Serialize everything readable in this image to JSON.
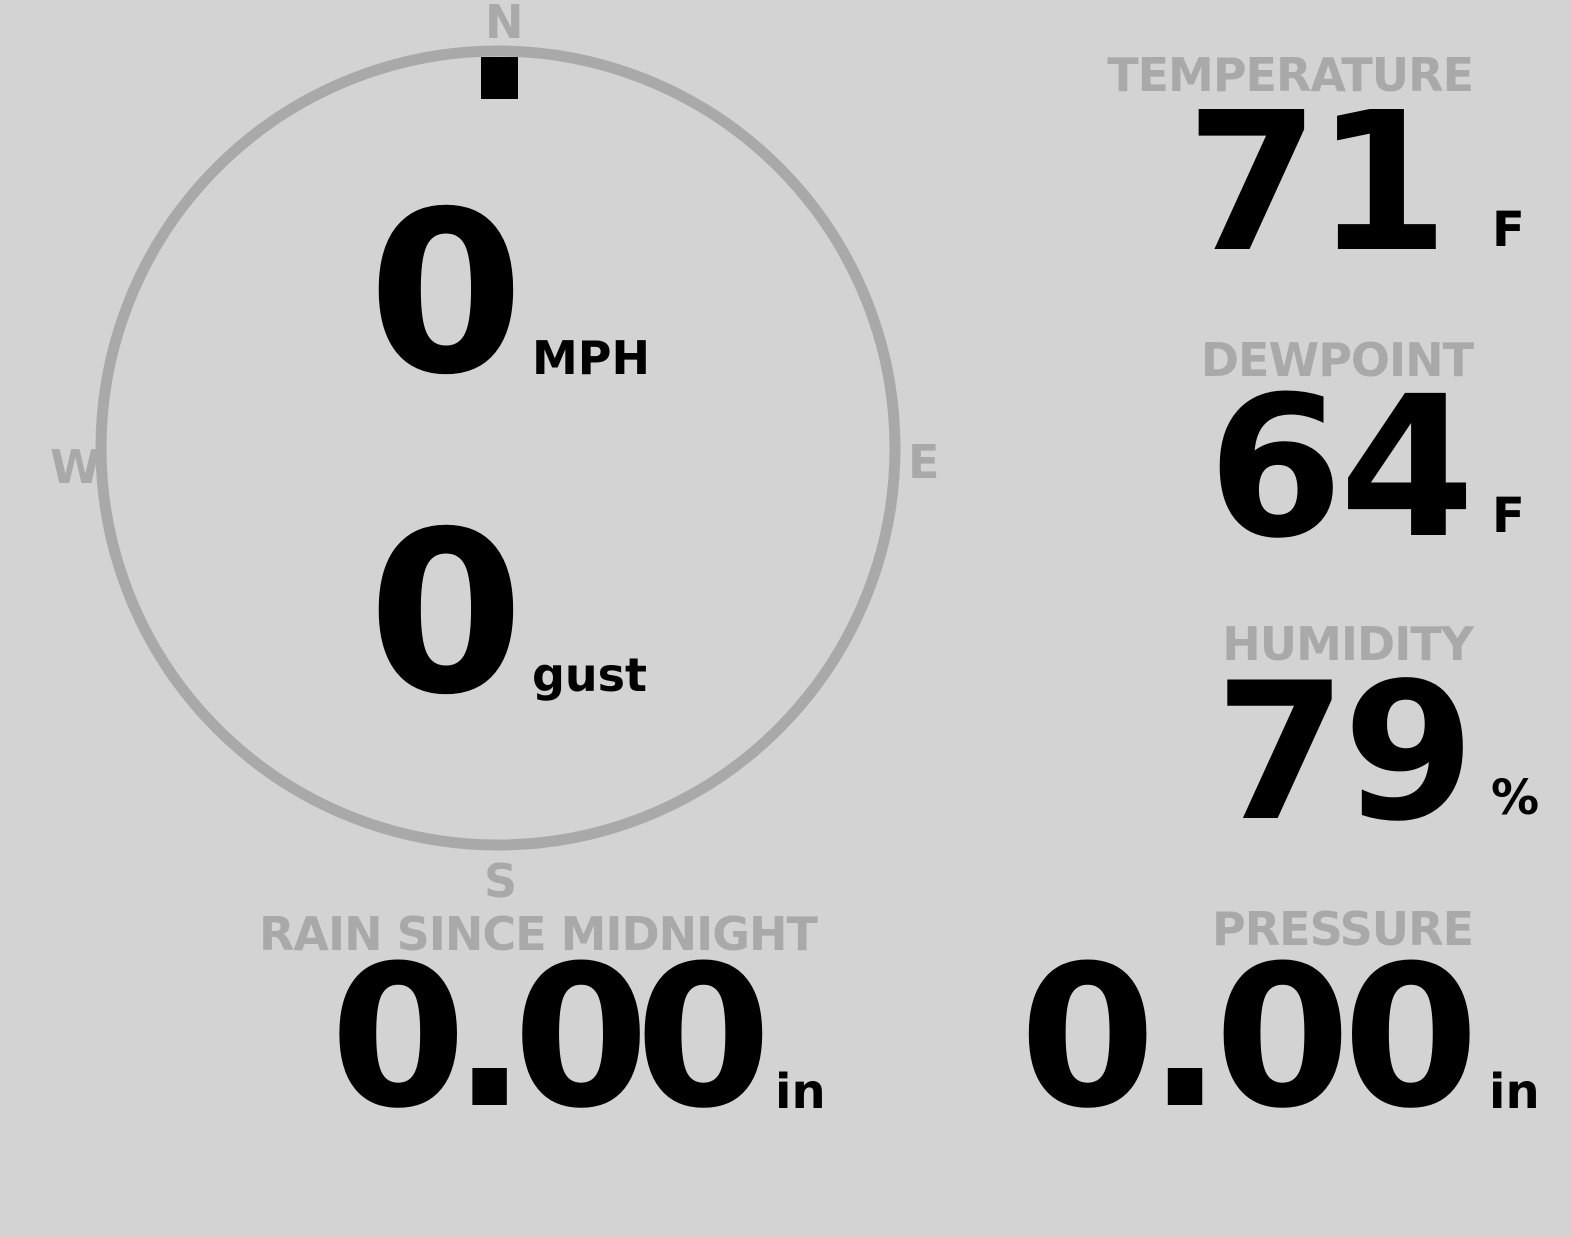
{
  "wind": {
    "speed": "0",
    "speed_unit": "MPH",
    "gust": "0",
    "gust_unit": "gust",
    "direction_degrees": 0,
    "cardinals": {
      "n": "N",
      "e": "E",
      "s": "S",
      "w": "W"
    }
  },
  "temperature": {
    "label": "TEMPERATURE",
    "value": "71",
    "unit": "F"
  },
  "dewpoint": {
    "label": "DEWPOINT",
    "value": "64",
    "unit": "F"
  },
  "humidity": {
    "label": "HUMIDITY",
    "value": "79",
    "unit": "%"
  },
  "rain": {
    "label": "RAIN SINCE MIDNIGHT",
    "value": "0.00",
    "unit": "in"
  },
  "pressure": {
    "label": "PRESSURE",
    "value": "0.00",
    "unit": "in"
  },
  "colors": {
    "background": "#d3d3d3",
    "muted": "#a9a9a9",
    "text": "#000000"
  }
}
